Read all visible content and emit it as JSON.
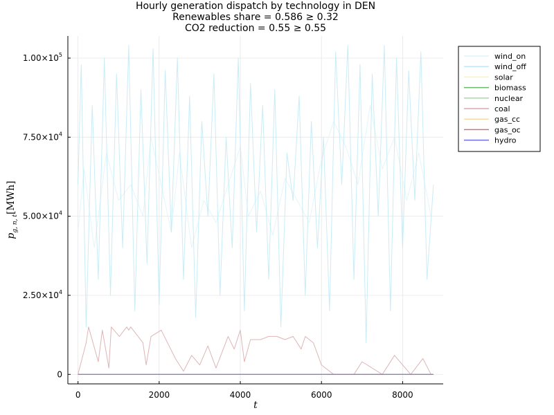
{
  "chart_data": {
    "type": "line",
    "title_lines": [
      "Hourly generation dispatch by technology in DEN",
      "Renewables share = 0.586 ≥ 0.32",
      "CO2 reduction = 0.55 ≥ 0.55"
    ],
    "xlabel": "t",
    "ylabel": {
      "base": "p",
      "subscript": "g, n, t",
      "unit": "[MWh]"
    },
    "xlim": [
      -250,
      9000
    ],
    "ylim": [
      -3000,
      107000
    ],
    "x_ticks": [
      0,
      2000,
      4000,
      6000,
      8000
    ],
    "x_tick_labels": [
      "0",
      "2000",
      "4000",
      "6000",
      "8000"
    ],
    "y_ticks": [
      0,
      25000,
      50000,
      75000,
      100000
    ],
    "y_tick_labels": [
      {
        "mantissa": "0",
        "exponent": ""
      },
      {
        "mantissa": "2.50×10",
        "exponent": "4"
      },
      {
        "mantissa": "5.00×10",
        "exponent": "4"
      },
      {
        "mantissa": "7.50×10",
        "exponent": "4"
      },
      {
        "mantissa": "1.00×10",
        "exponent": "5"
      }
    ],
    "grid": true,
    "legend_position": "top-right",
    "series": [
      {
        "name": "wind_on",
        "color": "#dff3f8",
        "x": [
          0,
          150,
          400,
          700,
          1000,
          1300,
          1600,
          1800,
          2050,
          2300,
          2500,
          2800,
          3100,
          3400,
          3700,
          4000,
          4200,
          4500,
          4800,
          5100,
          5400,
          5700,
          6000,
          6300,
          6600,
          6900,
          7200,
          7500,
          7800,
          8100,
          8400,
          8700
        ],
        "values": [
          45000,
          65000,
          40000,
          70000,
          55000,
          60000,
          50000,
          75000,
          60000,
          45000,
          70000,
          40000,
          55000,
          48000,
          60000,
          72000,
          50000,
          58000,
          44000,
          62000,
          55000,
          48000,
          68000,
          80000,
          72000,
          60000,
          85000,
          65000,
          75000,
          55000,
          70000,
          50000
        ]
      },
      {
        "name": "wind_off",
        "color": "#bfe9f4",
        "x": [
          0,
          80,
          200,
          350,
          500,
          650,
          800,
          950,
          1100,
          1250,
          1400,
          1550,
          1700,
          1850,
          2000,
          2150,
          2300,
          2450,
          2600,
          2750,
          2900,
          3050,
          3200,
          3350,
          3500,
          3650,
          3800,
          3950,
          4100,
          4250,
          4400,
          4550,
          4700,
          4850,
          5000,
          5150,
          5300,
          5450,
          5600,
          5750,
          5900,
          6050,
          6200,
          6350,
          6500,
          6650,
          6800,
          6950,
          7100,
          7250,
          7400,
          7550,
          7700,
          7850,
          8000,
          8150,
          8300,
          8450,
          8600,
          8760
        ],
        "values": [
          60000,
          98000,
          15000,
          85000,
          30000,
          100000,
          25000,
          95000,
          40000,
          104000,
          20000,
          90000,
          35000,
          103000,
          22000,
          96000,
          45000,
          100000,
          30000,
          88000,
          18000,
          80000,
          50000,
          95000,
          25000,
          75000,
          40000,
          100000,
          20000,
          92000,
          45000,
          85000,
          30000,
          90000,
          15000,
          70000,
          55000,
          88000,
          25000,
          80000,
          40000,
          75000,
          20000,
          102000,
          60000,
          104000,
          30000,
          98000,
          10000,
          95000,
          50000,
          104000,
          20000,
          100000,
          40000,
          96000,
          55000,
          102000,
          30000,
          60000
        ]
      },
      {
        "name": "solar",
        "color": "#fdf3b3",
        "x": [],
        "values": []
      },
      {
        "name": "biomass",
        "color": "#66b866",
        "x": [
          0,
          8760
        ],
        "values": [
          0,
          0
        ]
      },
      {
        "name": "nuclear",
        "color": "#9fe09f",
        "x": [],
        "values": []
      },
      {
        "name": "coal",
        "color": "#d9a8a8",
        "x": [
          0,
          200,
          260,
          500,
          600,
          760,
          820,
          1020,
          1200,
          1250,
          1300,
          1600,
          1680,
          1800,
          2050,
          2400,
          2600,
          2800,
          3000,
          3200,
          3400,
          3700,
          3850,
          4000,
          4100,
          4250,
          4500,
          4700,
          4900,
          5100,
          5300,
          5500,
          5600,
          5800,
          6000,
          6300,
          6800,
          7000,
          7500,
          7800,
          8200,
          8500,
          8700
        ],
        "values": [
          0,
          10000,
          15000,
          4000,
          14000,
          2000,
          15000,
          12000,
          15000,
          14000,
          15000,
          10000,
          3000,
          12000,
          14000,
          5000,
          1000,
          6000,
          3000,
          9000,
          2000,
          12000,
          8000,
          14000,
          4000,
          11000,
          11000,
          12000,
          12000,
          11000,
          12000,
          8000,
          12000,
          10000,
          3000,
          0,
          0,
          4000,
          0,
          6000,
          0,
          5000,
          0
        ]
      },
      {
        "name": "gas_cc",
        "color": "#f8d9a8",
        "x": [],
        "values": []
      },
      {
        "name": "gas_oc",
        "color": "#c27a8a",
        "x": [
          0,
          8760
        ],
        "values": [
          0,
          0
        ]
      },
      {
        "name": "hydro",
        "color": "#6f6fe6",
        "x": [
          0,
          8760
        ],
        "values": [
          0,
          0
        ]
      }
    ]
  }
}
